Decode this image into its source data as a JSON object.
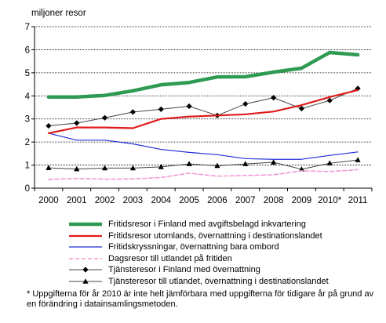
{
  "chart_data": {
    "type": "line",
    "ylabel": "miljoner resor",
    "x": [
      "2000",
      "2001",
      "2002",
      "2003",
      "2004",
      "2005",
      "2006",
      "2007",
      "2008",
      "2009",
      "2010*",
      "2011"
    ],
    "ylim": [
      0,
      7
    ],
    "yticks": [
      "0",
      "1",
      "2",
      "3",
      "4",
      "5",
      "6",
      "7"
    ],
    "grid": "horizontal",
    "legend_position": "bottom",
    "series": [
      {
        "name": "Fritidsresor i Finland med avgiftsbelagd inkvartering",
        "color": "#2e9a52",
        "style": "thick",
        "values": [
          3.95,
          3.95,
          4.02,
          4.22,
          4.48,
          4.58,
          4.82,
          4.83,
          5.03,
          5.2,
          5.88,
          5.78
        ]
      },
      {
        "name": "Fritidsresor utomlands, övernattning i destinationslandet",
        "color": "#e01b1b",
        "style": "medium",
        "values": [
          2.38,
          2.63,
          2.63,
          2.6,
          3.0,
          3.1,
          3.15,
          3.2,
          3.32,
          3.6,
          3.95,
          4.25
        ]
      },
      {
        "name": "Fritidskryssningar, övernattning bara ombord",
        "color": "#1f2fd8",
        "style": "thin",
        "values": [
          2.38,
          2.08,
          2.08,
          1.92,
          1.68,
          1.55,
          1.45,
          1.28,
          1.25,
          1.25,
          1.42,
          1.57
        ]
      },
      {
        "name": "Dagsresor till utlandet på fritiden",
        "color": "#f29ad4",
        "style": "dashed",
        "values": [
          0.38,
          0.42,
          0.39,
          0.4,
          0.46,
          0.65,
          0.52,
          0.55,
          0.58,
          0.75,
          0.72,
          0.8
        ]
      },
      {
        "name": "Tjänsteresor i Finland med övernattning",
        "color": "#444444",
        "style": "diamond",
        "values": [
          2.7,
          2.82,
          3.05,
          3.3,
          3.42,
          3.55,
          3.15,
          3.65,
          3.92,
          3.45,
          3.8,
          4.32
        ]
      },
      {
        "name": "Tjänsteresor till utlandet, övernattning i destinationslandet",
        "color": "#444444",
        "style": "triangle",
        "values": [
          0.88,
          0.83,
          0.87,
          0.87,
          0.92,
          1.05,
          0.97,
          1.05,
          1.12,
          0.82,
          1.08,
          1.22
        ]
      }
    ]
  },
  "footnote": "* Uppgifterna för år 2010 är inte helt jämförbara med uppgifterna för tidigare år på grund av en förändring i datainsamlingsmetoden."
}
